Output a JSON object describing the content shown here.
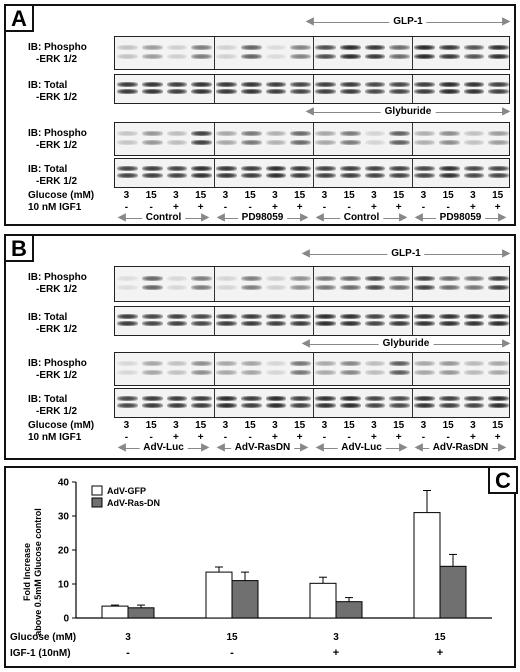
{
  "panel_a": {
    "letter": "A",
    "top_header": "GLP-1",
    "middle_header": "Glyburide",
    "rows": [
      {
        "l1": "IB: Phospho",
        "l2": "-ERK 1/2"
      },
      {
        "l1": "IB: Total",
        "l2": "-ERK 1/2"
      },
      {
        "l1": "IB: Phospho",
        "l2": "-ERK 1/2"
      },
      {
        "l1": "IB: Total",
        "l2": "-ERK 1/2"
      }
    ],
    "glucose_label": "Glucose (mM)",
    "igf_label": "10 nM IGF1",
    "glucose_values": [
      "3",
      "15",
      "3",
      "15",
      "3",
      "15",
      "3",
      "15",
      "3",
      "15",
      "3",
      "15",
      "3",
      "15",
      "3",
      "15"
    ],
    "igf_values": [
      "-",
      "-",
      "+",
      "+",
      "-",
      "-",
      "+",
      "+",
      "-",
      "-",
      "+",
      "+",
      "-",
      "-",
      "+",
      "+"
    ],
    "groups": [
      "Control",
      "PD98059",
      "Control",
      "PD98059"
    ]
  },
  "panel_b": {
    "letter": "B",
    "top_header": "GLP-1",
    "middle_header": "Glyburide",
    "rows": [
      {
        "l1": "IB: Phospho",
        "l2": "-ERK 1/2"
      },
      {
        "l1": "IB: Total",
        "l2": "-ERK 1/2"
      },
      {
        "l1": "IB: Phospho",
        "l2": "-ERK 1/2"
      },
      {
        "l1": "IB: Total",
        "l2": "-ERK 1/2"
      }
    ],
    "glucose_label": "Glucose (mM)",
    "igf_label": "10 nM IGF1",
    "glucose_values": [
      "3",
      "15",
      "3",
      "15",
      "3",
      "15",
      "3",
      "15",
      "3",
      "15",
      "3",
      "15",
      "3",
      "15",
      "3",
      "15"
    ],
    "igf_values": [
      "-",
      "-",
      "+",
      "+",
      "-",
      "-",
      "+",
      "+",
      "-",
      "-",
      "+",
      "+",
      "-",
      "-",
      "+",
      "+"
    ],
    "groups": [
      "AdV-Luc",
      "AdV-RasDN",
      "AdV-Luc",
      "AdV-RasDN"
    ]
  },
  "panel_c": {
    "letter": "C",
    "ylabel_line1": "Fold Increase",
    "ylabel_line2": "above 0.5mM Glucose control",
    "glucose_label": "Glucose (mM)",
    "igf_label": "IGF-1 (10nM)",
    "colors": {
      "gfp": "#ffffff",
      "rasdn": "#707070",
      "axis": "#000000"
    }
  },
  "chart_data": {
    "type": "bar",
    "categories": [
      "3 / -",
      "15 / -",
      "3 / +",
      "15 / +"
    ],
    "x_glucose": [
      "3",
      "15",
      "3",
      "15"
    ],
    "x_igf": [
      "-",
      "-",
      "+",
      "+"
    ],
    "series": [
      {
        "name": "AdV-GFP",
        "values": [
          3.5,
          13.5,
          10.2,
          31.0
        ],
        "errors": [
          0.3,
          1.5,
          1.8,
          6.5
        ]
      },
      {
        "name": "AdV-Ras-DN",
        "values": [
          3.0,
          11.0,
          4.8,
          15.2
        ],
        "errors": [
          0.8,
          2.5,
          1.2,
          3.5
        ]
      }
    ],
    "ylim": [
      0,
      40
    ],
    "yticks": [
      "0",
      "10",
      "20",
      "30",
      "40"
    ],
    "legend_position": "top-left",
    "grid": false
  }
}
